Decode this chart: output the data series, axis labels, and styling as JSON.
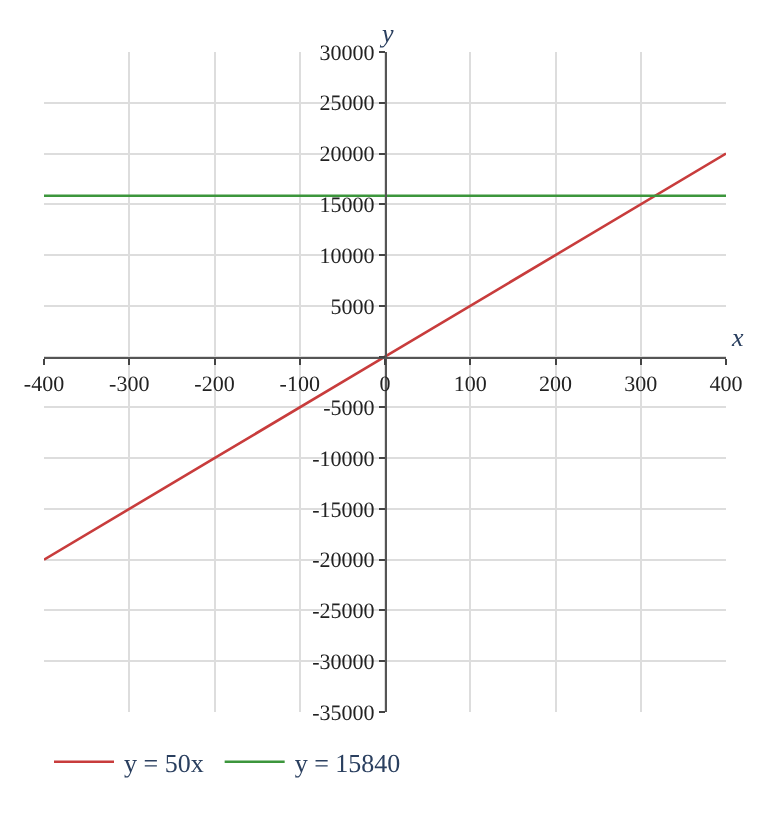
{
  "chart_data": {
    "type": "line",
    "xlabel": "x",
    "ylabel": "y",
    "xlim": [
      -400,
      400
    ],
    "ylim": [
      -35000,
      30000
    ],
    "xticks": [
      -400,
      -300,
      -200,
      -100,
      0,
      100,
      200,
      300,
      400
    ],
    "yticks": [
      -35000,
      -30000,
      -25000,
      -20000,
      -15000,
      -10000,
      -5000,
      {
        "value": 0,
        "label": null
      },
      5000,
      10000,
      15000,
      20000,
      25000,
      30000
    ],
    "series": [
      {
        "name": "y = 50x",
        "color": "#c83c3c",
        "x": [
          -400,
          -200,
          0,
          200,
          400
        ],
        "values": [
          -20000,
          -10000,
          0,
          10000,
          20000
        ]
      },
      {
        "name": "y = 15840",
        "color": "#3c963c",
        "x": [
          -400,
          0,
          400
        ],
        "values": [
          15840,
          15840,
          15840
        ]
      }
    ],
    "grid": true,
    "legend": "bottom",
    "marker": "none",
    "line_style": "solid"
  }
}
